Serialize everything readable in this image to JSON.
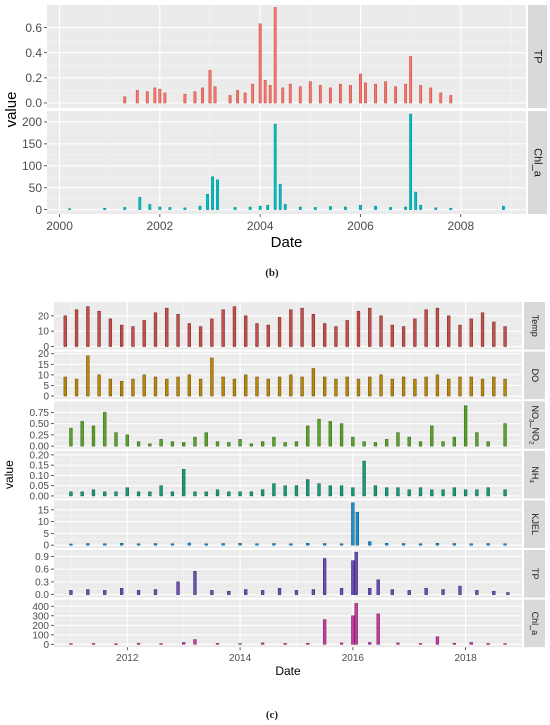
{
  "captions": {
    "b": "(b)",
    "c": "(c)"
  },
  "chart_data": [
    {
      "type": "bar",
      "figure": "(b)",
      "xlabel": "Date",
      "ylabel": "value",
      "xticks": [
        "2000",
        "2002",
        "2004",
        "2006",
        "2008"
      ],
      "xlim": [
        1999.75,
        2009.3
      ],
      "grid": true,
      "panels": [
        {
          "name": "TP",
          "color": "#F8766D",
          "stroke": "#c4453d",
          "ylim": [
            -0.04,
            0.78
          ],
          "yticks": [
            0.0,
            0.2,
            0.4,
            0.6
          ],
          "ytick_labels": [
            "0.0",
            "0.2",
            "0.4",
            "0.6"
          ],
          "x": [
            2001.3,
            2001.55,
            2001.75,
            2001.9,
            2002.0,
            2002.1,
            2002.5,
            2002.7,
            2002.85,
            2003.0,
            2003.1,
            2003.4,
            2003.55,
            2003.7,
            2003.85,
            2004.0,
            2004.1,
            2004.2,
            2004.3,
            2004.45,
            2004.6,
            2004.8,
            2005.0,
            2005.2,
            2005.4,
            2005.6,
            2005.8,
            2006.0,
            2006.1,
            2006.3,
            2006.5,
            2006.7,
            2006.9,
            2007.0,
            2007.2,
            2007.4,
            2007.6,
            2007.8
          ],
          "values": [
            0.05,
            0.1,
            0.09,
            0.12,
            0.11,
            0.08,
            0.07,
            0.09,
            0.12,
            0.26,
            0.13,
            0.06,
            0.1,
            0.08,
            0.15,
            0.63,
            0.18,
            0.14,
            0.76,
            0.12,
            0.15,
            0.13,
            0.17,
            0.14,
            0.12,
            0.15,
            0.14,
            0.23,
            0.16,
            0.15,
            0.17,
            0.13,
            0.15,
            0.37,
            0.14,
            0.12,
            0.08,
            0.06
          ]
        },
        {
          "name": "Chl_a",
          "color": "#00BFC4",
          "stroke": "#008a8e",
          "ylim": [
            -10,
            225
          ],
          "yticks": [
            0,
            50,
            100,
            150,
            200
          ],
          "ytick_labels": [
            "0",
            "50",
            "100",
            "150",
            "200"
          ],
          "x": [
            2000.2,
            2000.9,
            2001.3,
            2001.6,
            2001.8,
            2002.0,
            2002.2,
            2002.5,
            2002.8,
            2002.95,
            2003.05,
            2003.15,
            2003.5,
            2003.8,
            2004.0,
            2004.15,
            2004.3,
            2004.4,
            2004.5,
            2004.8,
            2005.1,
            2005.4,
            2005.7,
            2006.0,
            2006.3,
            2006.6,
            2006.9,
            2007.0,
            2007.1,
            2007.2,
            2007.5,
            2007.8,
            2008.85
          ],
          "values": [
            2,
            3,
            5,
            28,
            12,
            6,
            5,
            4,
            8,
            35,
            75,
            68,
            5,
            6,
            8,
            10,
            195,
            58,
            12,
            6,
            5,
            7,
            6,
            10,
            8,
            5,
            6,
            218,
            40,
            10,
            4,
            3,
            8
          ]
        }
      ]
    },
    {
      "type": "bar",
      "figure": "(c)",
      "xlabel": "Date",
      "ylabel": "value",
      "xticks": [
        "2012",
        "2014",
        "2016",
        "2018"
      ],
      "xlim": [
        2010.7,
        2019.0
      ],
      "grid": true,
      "panels": [
        {
          "name": "Temp",
          "color": "#C0504D",
          "stroke": "#7a2522",
          "ylim": [
            -2,
            29
          ],
          "yticks": [
            0,
            10,
            20
          ],
          "ytick_labels": [
            "0",
            "10",
            "20"
          ],
          "x": [
            2010.9,
            2011.1,
            2011.3,
            2011.5,
            2011.7,
            2011.9,
            2012.1,
            2012.3,
            2012.5,
            2012.7,
            2012.9,
            2013.1,
            2013.3,
            2013.5,
            2013.7,
            2013.9,
            2014.1,
            2014.3,
            2014.5,
            2014.7,
            2014.9,
            2015.1,
            2015.3,
            2015.5,
            2015.7,
            2015.9,
            2016.1,
            2016.3,
            2016.5,
            2016.7,
            2016.9,
            2017.1,
            2017.3,
            2017.5,
            2017.7,
            2017.9,
            2018.1,
            2018.3,
            2018.5,
            2018.7
          ],
          "values": [
            20,
            24,
            26,
            23,
            18,
            14,
            13,
            17,
            22,
            25,
            21,
            15,
            13,
            18,
            24,
            26,
            20,
            15,
            14,
            19,
            24,
            25,
            21,
            15,
            13,
            17,
            23,
            25,
            20,
            14,
            13,
            18,
            24,
            25,
            20,
            14,
            18,
            22,
            16,
            13
          ]
        },
        {
          "name": "DO",
          "color": "#B8860B",
          "stroke": "#6b4d05",
          "ylim": [
            -1.5,
            21
          ],
          "yticks": [
            0,
            5,
            10,
            15,
            20
          ],
          "ytick_labels": [
            "0",
            "5",
            "10",
            "15",
            "20"
          ],
          "x": [
            2010.9,
            2011.1,
            2011.3,
            2011.5,
            2011.7,
            2011.9,
            2012.1,
            2012.3,
            2012.5,
            2012.7,
            2012.9,
            2013.1,
            2013.3,
            2013.5,
            2013.7,
            2013.9,
            2014.1,
            2014.3,
            2014.5,
            2014.7,
            2014.9,
            2015.1,
            2015.3,
            2015.5,
            2015.7,
            2015.9,
            2016.1,
            2016.3,
            2016.5,
            2016.7,
            2016.9,
            2017.1,
            2017.3,
            2017.5,
            2017.7,
            2017.9,
            2018.1,
            2018.3,
            2018.5,
            2018.7
          ],
          "values": [
            9,
            8,
            19,
            10,
            8,
            7,
            8,
            10,
            9,
            8,
            9,
            10,
            8,
            18,
            9,
            8,
            10,
            9,
            8,
            9,
            10,
            9,
            13,
            9,
            8,
            9,
            8,
            9,
            10,
            8,
            9,
            8,
            9,
            10,
            8,
            9,
            9,
            8,
            9,
            8
          ]
        },
        {
          "name": "NO3_NO2",
          "color": "#5CA12C",
          "stroke": "#2f6114",
          "ylim": [
            -0.06,
            1.0
          ],
          "yticks": [
            0.0,
            0.25,
            0.5,
            0.75
          ],
          "ytick_labels": [
            "0.00",
            "0.25",
            "0.50",
            "0.75"
          ],
          "x": [
            2011.0,
            2011.2,
            2011.4,
            2011.6,
            2011.8,
            2012.0,
            2012.2,
            2012.4,
            2012.6,
            2012.8,
            2013.0,
            2013.2,
            2013.4,
            2013.6,
            2013.8,
            2014.0,
            2014.2,
            2014.4,
            2014.6,
            2014.8,
            2015.0,
            2015.2,
            2015.4,
            2015.6,
            2015.8,
            2016.0,
            2016.2,
            2016.4,
            2016.6,
            2016.8,
            2017.0,
            2017.2,
            2017.4,
            2017.6,
            2017.8,
            2018.0,
            2018.2,
            2018.4,
            2018.7
          ],
          "values": [
            0.4,
            0.55,
            0.45,
            0.75,
            0.3,
            0.25,
            0.1,
            0.05,
            0.15,
            0.1,
            0.08,
            0.2,
            0.3,
            0.1,
            0.08,
            0.15,
            0.05,
            0.1,
            0.2,
            0.08,
            0.1,
            0.45,
            0.6,
            0.55,
            0.5,
            0.2,
            0.1,
            0.08,
            0.15,
            0.3,
            0.2,
            0.1,
            0.45,
            0.1,
            0.2,
            0.9,
            0.3,
            0.1,
            0.5
          ]
        },
        {
          "name": "NH4",
          "color": "#1A9A7A",
          "stroke": "#0c5a47",
          "ylim": [
            -0.012,
            0.22
          ],
          "yticks": [
            0.0,
            0.05,
            0.1,
            0.15,
            0.2
          ],
          "ytick_labels": [
            "0.00",
            "0.05",
            "0.10",
            "0.15",
            "0.20"
          ],
          "x": [
            2011.0,
            2011.2,
            2011.4,
            2011.6,
            2011.8,
            2012.0,
            2012.2,
            2012.4,
            2012.6,
            2012.8,
            2013.0,
            2013.2,
            2013.4,
            2013.6,
            2013.8,
            2014.0,
            2014.2,
            2014.4,
            2014.6,
            2014.8,
            2015.0,
            2015.2,
            2015.4,
            2015.6,
            2015.8,
            2016.0,
            2016.2,
            2016.4,
            2016.6,
            2016.8,
            2017.0,
            2017.2,
            2017.4,
            2017.6,
            2017.8,
            2018.0,
            2018.2,
            2018.4,
            2018.7
          ],
          "values": [
            0.02,
            0.02,
            0.03,
            0.02,
            0.02,
            0.04,
            0.02,
            0.02,
            0.05,
            0.02,
            0.13,
            0.02,
            0.02,
            0.03,
            0.02,
            0.02,
            0.02,
            0.03,
            0.06,
            0.05,
            0.05,
            0.08,
            0.06,
            0.05,
            0.05,
            0.04,
            0.17,
            0.05,
            0.04,
            0.04,
            0.03,
            0.04,
            0.03,
            0.03,
            0.04,
            0.03,
            0.03,
            0.04,
            0.03
          ]
        },
        {
          "name": "KJEL",
          "color": "#1E90C8",
          "stroke": "#0d5580",
          "ylim": [
            -1.2,
            19
          ],
          "yticks": [
            0,
            5,
            10,
            15
          ],
          "ytick_labels": [
            "0",
            "5",
            "10",
            "15"
          ],
          "x": [
            2011.0,
            2011.3,
            2011.6,
            2011.9,
            2012.2,
            2012.5,
            2012.8,
            2013.1,
            2013.4,
            2013.7,
            2014.0,
            2014.3,
            2014.6,
            2014.9,
            2015.2,
            2015.5,
            2015.8,
            2016.0,
            2016.08,
            2016.3,
            2016.6,
            2016.9,
            2017.2,
            2017.5,
            2017.8,
            2018.1,
            2018.4,
            2018.7
          ],
          "values": [
            0.5,
            0.7,
            0.6,
            0.8,
            0.6,
            0.7,
            0.6,
            0.9,
            0.6,
            0.7,
            0.8,
            0.6,
            0.7,
            0.6,
            0.8,
            0.7,
            0.6,
            18,
            14,
            1.5,
            0.8,
            0.7,
            0.6,
            0.8,
            0.7,
            0.6,
            0.7,
            0.6
          ]
        },
        {
          "name": "TP",
          "color": "#6A4FB0",
          "stroke": "#3a2770",
          "ylim": [
            -0.07,
            1.05
          ],
          "yticks": [
            0.0,
            0.3,
            0.6,
            0.9
          ],
          "ytick_labels": [
            "0.0",
            "0.3",
            "0.6",
            "0.9"
          ],
          "x": [
            2011.0,
            2011.3,
            2011.6,
            2011.9,
            2012.2,
            2012.5,
            2012.9,
            2013.2,
            2013.5,
            2013.8,
            2014.1,
            2014.4,
            2014.7,
            2015.0,
            2015.3,
            2015.5,
            2015.8,
            2016.0,
            2016.06,
            2016.3,
            2016.45,
            2016.7,
            2017.0,
            2017.3,
            2017.6,
            2017.9,
            2018.2,
            2018.5,
            2018.75
          ],
          "values": [
            0.1,
            0.12,
            0.1,
            0.15,
            0.1,
            0.12,
            0.3,
            0.55,
            0.1,
            0.08,
            0.12,
            0.1,
            0.15,
            0.1,
            0.12,
            0.85,
            0.15,
            0.8,
            1.0,
            0.15,
            0.35,
            0.12,
            0.1,
            0.15,
            0.12,
            0.2,
            0.1,
            0.08,
            0.05
          ]
        },
        {
          "name": "Chl_a",
          "color": "#C040A0",
          "stroke": "#7a1c63",
          "ylim": [
            -30,
            470
          ],
          "yticks": [
            0,
            100,
            200,
            300,
            400
          ],
          "ytick_labels": [
            "0",
            "100",
            "200",
            "300",
            "400"
          ],
          "x": [
            2011.0,
            2011.4,
            2011.8,
            2012.2,
            2012.6,
            2013.0,
            2013.2,
            2013.6,
            2014.0,
            2014.4,
            2014.8,
            2015.2,
            2015.5,
            2015.8,
            2016.0,
            2016.06,
            2016.3,
            2016.45,
            2016.8,
            2017.2,
            2017.5,
            2017.8,
            2018.1,
            2018.4,
            2018.7
          ],
          "values": [
            8,
            10,
            6,
            12,
            8,
            20,
            50,
            10,
            8,
            15,
            10,
            12,
            260,
            15,
            300,
            430,
            20,
            320,
            15,
            10,
            80,
            12,
            20,
            10,
            8
          ]
        }
      ]
    }
  ]
}
